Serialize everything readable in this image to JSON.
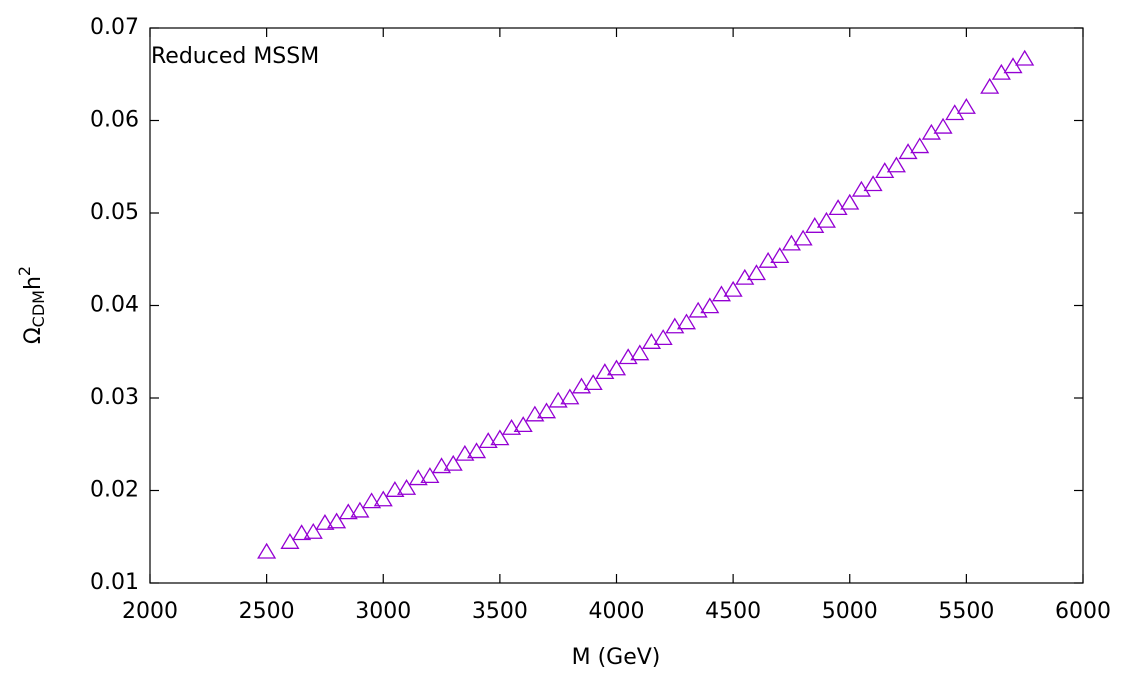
{
  "chart_data": {
    "type": "scatter",
    "annotation": "Reduced MSSM",
    "xlabel": "M (GeV)",
    "ylabel": {
      "symbol": "Ω",
      "subscript": "CDM",
      "base": "h",
      "superscript": "2"
    },
    "xlim": [
      2000,
      6000
    ],
    "xticks": [
      2000,
      2500,
      3000,
      3500,
      4000,
      4500,
      5000,
      5500,
      6000
    ],
    "ylim": [
      0.01,
      0.07
    ],
    "yticks": [
      0.01,
      0.02,
      0.03,
      0.04,
      0.05,
      0.06,
      0.07
    ],
    "grid": false,
    "marker": "triangle-open",
    "color": "#9400d3",
    "x": [
      2500,
      2600,
      2650,
      2700,
      2750,
      2800,
      2850,
      2900,
      2950,
      3000,
      3050,
      3100,
      3150,
      3200,
      3250,
      3300,
      3350,
      3400,
      3450,
      3500,
      3550,
      3600,
      3650,
      3700,
      3750,
      3800,
      3850,
      3900,
      3950,
      4000,
      4050,
      4100,
      4150,
      4200,
      4250,
      4300,
      4350,
      4400,
      4450,
      4500,
      4550,
      4600,
      4650,
      4700,
      4750,
      4800,
      4850,
      4900,
      4950,
      5000,
      5050,
      5100,
      5150,
      5200,
      5250,
      5300,
      5350,
      5400,
      5450,
      5500,
      5600,
      5650,
      5700,
      5750
    ],
    "y": [
      0.01335,
      0.0144,
      0.01535,
      0.01549,
      0.01646,
      0.01662,
      0.01761,
      0.01779,
      0.0188,
      0.019,
      0.02002,
      0.02024,
      0.02129,
      0.02153,
      0.02259,
      0.02285,
      0.02393,
      0.02421,
      0.02531,
      0.02561,
      0.02673,
      0.02704,
      0.02818,
      0.02852,
      0.02968,
      0.03003,
      0.03121,
      0.03158,
      0.03277,
      0.03316,
      0.03438,
      0.03479,
      0.03602,
      0.03645,
      0.0377,
      0.03814,
      0.03941,
      0.03988,
      0.04117,
      0.04166,
      0.04296,
      0.04346,
      0.04479,
      0.04531,
      0.04666,
      0.0472,
      0.04856,
      0.04912,
      0.0505,
      0.05108,
      0.05248,
      0.05308,
      0.0545,
      0.05511,
      0.05655,
      0.05718,
      0.05864,
      0.05929,
      0.06076,
      0.06143,
      0.06361,
      0.06512,
      0.06583,
      0.06665
    ]
  }
}
